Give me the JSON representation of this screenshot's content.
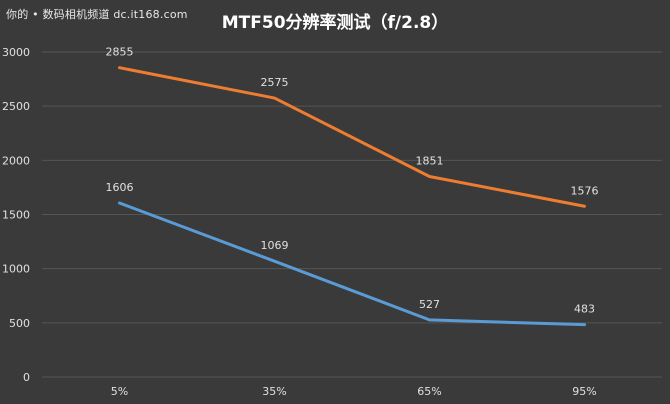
{
  "watermark": "你的 • 数码相机频道 dc.it168.com",
  "chart_data": {
    "type": "line",
    "title": "MTF50分辨率测试（f/2.8）",
    "categories": [
      "5%",
      "35%",
      "65%",
      "95%"
    ],
    "ylim": [
      0,
      3000
    ],
    "yticks": [
      0,
      500,
      1000,
      1500,
      2000,
      2500,
      3000
    ],
    "grid": true,
    "legend": "none",
    "series": [
      {
        "values": [
          2855,
          2575,
          1851,
          1576
        ],
        "color": "#ed7d31"
      },
      {
        "values": [
          1606,
          1069,
          527,
          483
        ],
        "color": "#5b9bd5"
      }
    ],
    "gridColor": "#555555",
    "textColor": "#e0e0e0"
  }
}
